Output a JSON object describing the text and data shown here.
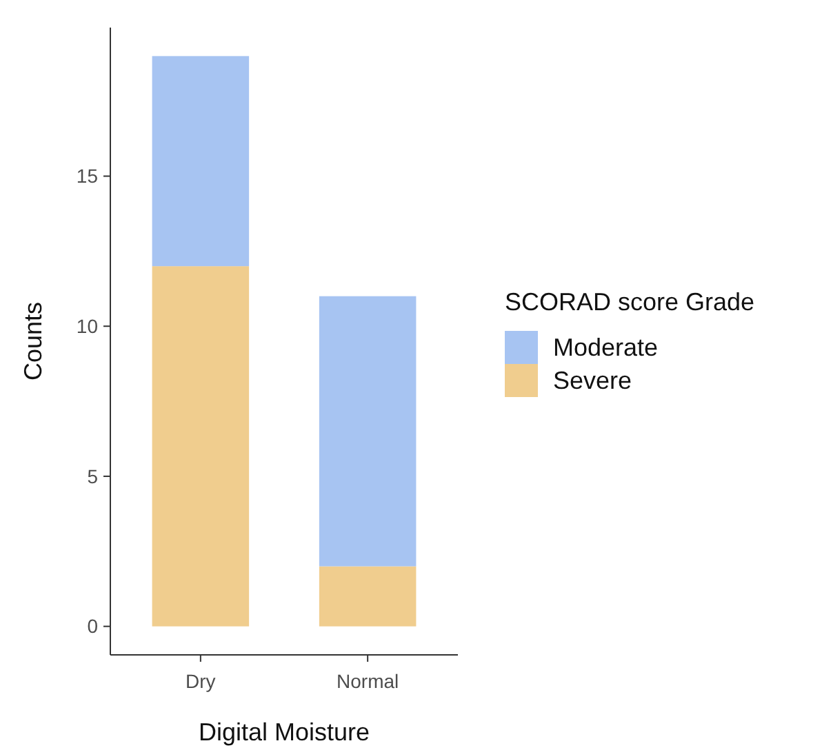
{
  "chart_data": {
    "type": "bar",
    "xlabel": "Digital Moisture",
    "ylabel": "Counts",
    "legend_title": "SCORAD score Grade",
    "categories": [
      "Dry",
      "Normal"
    ],
    "stacked": true,
    "series": [
      {
        "name": "Severe",
        "color": "#f0cd8e",
        "values": [
          12,
          2
        ]
      },
      {
        "name": "Moderate",
        "color": "#a7c4f2",
        "values": [
          7,
          9
        ]
      }
    ],
    "ylim": [
      -0.95,
      19.95
    ],
    "yticks": [
      0,
      5,
      10,
      15
    ],
    "grid": false,
    "legend": "right"
  }
}
